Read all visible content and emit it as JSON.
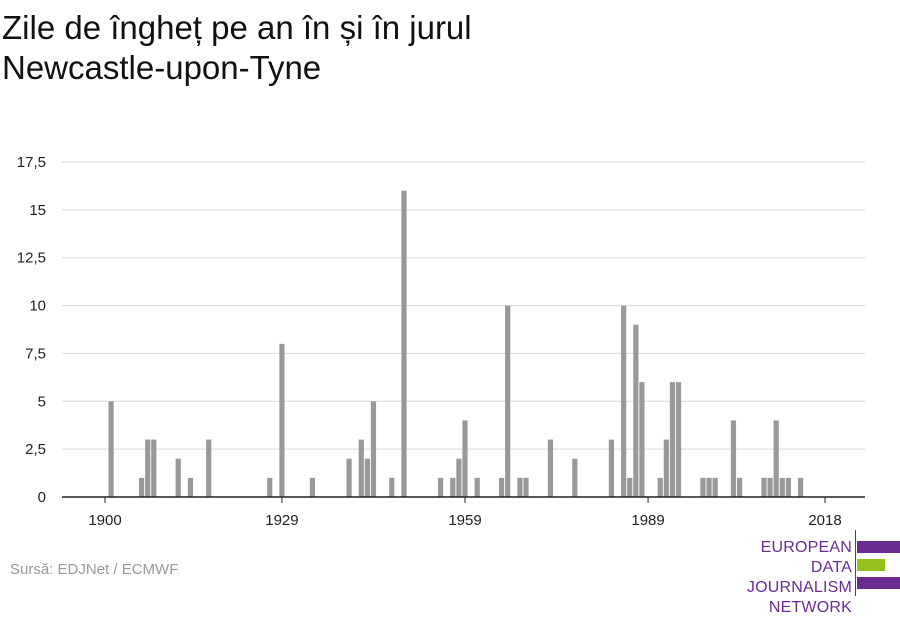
{
  "header": {
    "title_line1": "Zile de îngheț pe an în și în jurul",
    "title_line2": "Newcastle-upon-Tyne"
  },
  "footer": {
    "source": "Sursă: EDJNet / ECMWF"
  },
  "logo": {
    "line1": "EUROPEAN",
    "line2": "DATA JOURNALISM",
    "line3": "NETWORK",
    "colors": {
      "purple": "#6b2c91",
      "green": "#95c11f"
    }
  },
  "colors": {
    "bar": "#999999",
    "grid": "#d9d9d9",
    "axis": "#222222"
  },
  "chart_data": {
    "type": "bar",
    "title": "Zile de îngheț pe an în și în jurul Newcastle-upon-Tyne",
    "xlabel": "",
    "ylabel": "",
    "x_ticks": [
      "1900",
      "1929",
      "1959",
      "1989",
      "2018"
    ],
    "y_ticks": [
      "0",
      "2,5",
      "5",
      "7,5",
      "10",
      "12,5",
      "15",
      "17,5"
    ],
    "ylim": [
      0,
      17.5
    ],
    "xlim": [
      1900,
      2018
    ],
    "grid": true,
    "x": [
      1901,
      1902,
      1903,
      1904,
      1905,
      1906,
      1907,
      1908,
      1909,
      1910,
      1911,
      1912,
      1913,
      1914,
      1915,
      1916,
      1917,
      1918,
      1919,
      1920,
      1921,
      1922,
      1923,
      1924,
      1925,
      1926,
      1927,
      1928,
      1929,
      1930,
      1931,
      1932,
      1933,
      1934,
      1935,
      1936,
      1937,
      1938,
      1939,
      1940,
      1941,
      1942,
      1943,
      1944,
      1945,
      1946,
      1947,
      1948,
      1949,
      1950,
      1951,
      1952,
      1953,
      1954,
      1955,
      1956,
      1957,
      1958,
      1959,
      1960,
      1961,
      1962,
      1963,
      1964,
      1965,
      1966,
      1967,
      1968,
      1969,
      1970,
      1971,
      1972,
      1973,
      1974,
      1975,
      1976,
      1977,
      1978,
      1979,
      1980,
      1981,
      1982,
      1983,
      1984,
      1985,
      1986,
      1987,
      1988,
      1989,
      1990,
      1991,
      1992,
      1993,
      1994,
      1995,
      1996,
      1997,
      1998,
      1999,
      2000,
      2001,
      2002,
      2003,
      2004,
      2005,
      2006,
      2007,
      2008,
      2009,
      2010,
      2011,
      2012,
      2013,
      2014,
      2015,
      2016,
      2017,
      2018
    ],
    "values": [
      5,
      0,
      0,
      0,
      0,
      1,
      3,
      3,
      0,
      0,
      0,
      2,
      0,
      1,
      0,
      0,
      3,
      0,
      0,
      0,
      0,
      0,
      0,
      0,
      0,
      0,
      1,
      0,
      8,
      0,
      0,
      0,
      0,
      1,
      0,
      0,
      0,
      0,
      0,
      2,
      0,
      3,
      2,
      5,
      0,
      0,
      1,
      0,
      16,
      0,
      0,
      0,
      0,
      0,
      1,
      0,
      1,
      2,
      4,
      0,
      1,
      0,
      0,
      0,
      1,
      10,
      0,
      1,
      1,
      0,
      0,
      0,
      3,
      0,
      0,
      0,
      2,
      0,
      0,
      0,
      0,
      0,
      3,
      0,
      10,
      1,
      9,
      6,
      0,
      0,
      1,
      3,
      6,
      6,
      0,
      0,
      0,
      1,
      1,
      1,
      0,
      0,
      4,
      1,
      0,
      0,
      0,
      1,
      1,
      4,
      1,
      1,
      0,
      1,
      0,
      0,
      0,
      0
    ]
  }
}
